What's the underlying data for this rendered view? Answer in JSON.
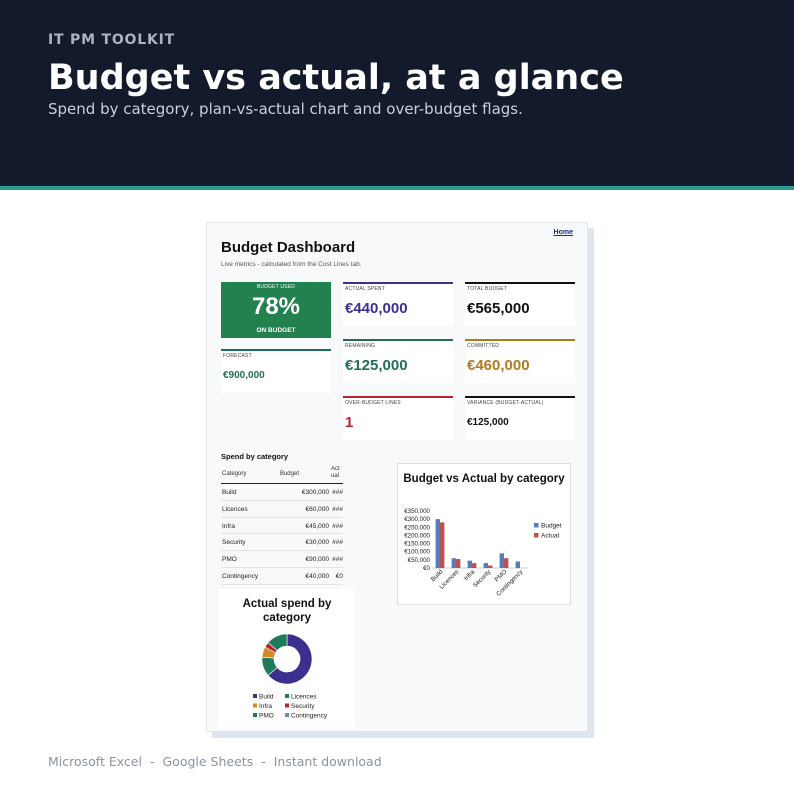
{
  "hero": {
    "eyebrow": "IT PM TOOLKIT",
    "title": "Budget vs actual, at a glance",
    "subtitle": "Spend by category, plan-vs-actual chart and over-budget flags.",
    "background": "#121a2c",
    "accent": "#2a9d8f"
  },
  "dashboard": {
    "home_link": "Home",
    "title": "Budget Dashboard",
    "subtitle": "Live metrics - calculated from the Cost Lines tab.",
    "budget_used": {
      "label": "BUDGET USED",
      "value": "78%",
      "status": "ON BUDGET",
      "color": "#23804f"
    },
    "cards": {
      "actual_spent": {
        "label": "ACTUAL SPENT",
        "value": "€440,000",
        "color": "#3b2f8f"
      },
      "total_budget": {
        "label": "TOTAL BUDGET",
        "value": "€565,000",
        "color": "#111111"
      },
      "forecast": {
        "label": "FORECAST",
        "value": "€900,000",
        "color": "#1f6e55"
      },
      "remaining": {
        "label": "REMAINING",
        "value": "€125,000",
        "color": "#1f6e55"
      },
      "committed": {
        "label": "COMMITTED",
        "value": "€460,000",
        "color": "#b07a1d"
      },
      "over_budget_lines": {
        "label": "OVER-BUDGET LINES",
        "value": "1",
        "color": "#b3262b"
      },
      "variance": {
        "label": "VARIANCE (BUDGET-ACTUAL)",
        "value": "€125,000",
        "color": "#111111"
      }
    },
    "table": {
      "title": "Spend by category",
      "headers": {
        "category": "Category",
        "budget": "Budget",
        "actual": "Act ual"
      },
      "rows": [
        {
          "category": "Build",
          "budget": "€300,000",
          "actual": "###"
        },
        {
          "category": "Licences",
          "budget": "€60,000",
          "actual": "###"
        },
        {
          "category": "Infra",
          "budget": "€45,000",
          "actual": "###"
        },
        {
          "category": "Security",
          "budget": "€30,000",
          "actual": "###"
        },
        {
          "category": "PMO",
          "budget": "€90,000",
          "actual": "###"
        },
        {
          "category": "Contingency",
          "budget": "€40,000",
          "actual": "€0"
        }
      ]
    }
  },
  "chart_data": [
    {
      "type": "bar",
      "title": "Budget vs Actual by category",
      "categories": [
        "Build",
        "Licences",
        "Infra",
        "Security",
        "PMO",
        "Contingency"
      ],
      "series": [
        {
          "name": "Budget",
          "values": [
            300000,
            60000,
            45000,
            30000,
            90000,
            40000
          ],
          "color": "#4f7fbf"
        },
        {
          "name": "Actual",
          "values": [
            280000,
            55000,
            30000,
            15000,
            60000,
            0
          ],
          "color": "#c0504d"
        }
      ],
      "ylim": [
        0,
        350000
      ],
      "yticks": [
        "€0",
        "€50,000",
        "€100,000",
        "€150,000",
        "€200,000",
        "€250,000",
        "€300,000",
        "€350,000"
      ],
      "legend": "right",
      "grid": false
    },
    {
      "type": "pie",
      "title": "Actual spend by category",
      "categories": [
        "Build",
        "Licences",
        "Infra",
        "Security",
        "PMO",
        "Contingency"
      ],
      "values": [
        280000,
        55000,
        30000,
        15000,
        60000,
        0
      ],
      "colors": [
        "#3b2f8f",
        "#1f7a5a",
        "#d28a2a",
        "#b3262b",
        "#1f7a5a",
        "#6a8ac6"
      ],
      "legend": "bottom"
    }
  ],
  "footer": {
    "items": [
      "Microsoft Excel",
      "Google Sheets",
      "Instant download"
    ],
    "separator": "-"
  }
}
